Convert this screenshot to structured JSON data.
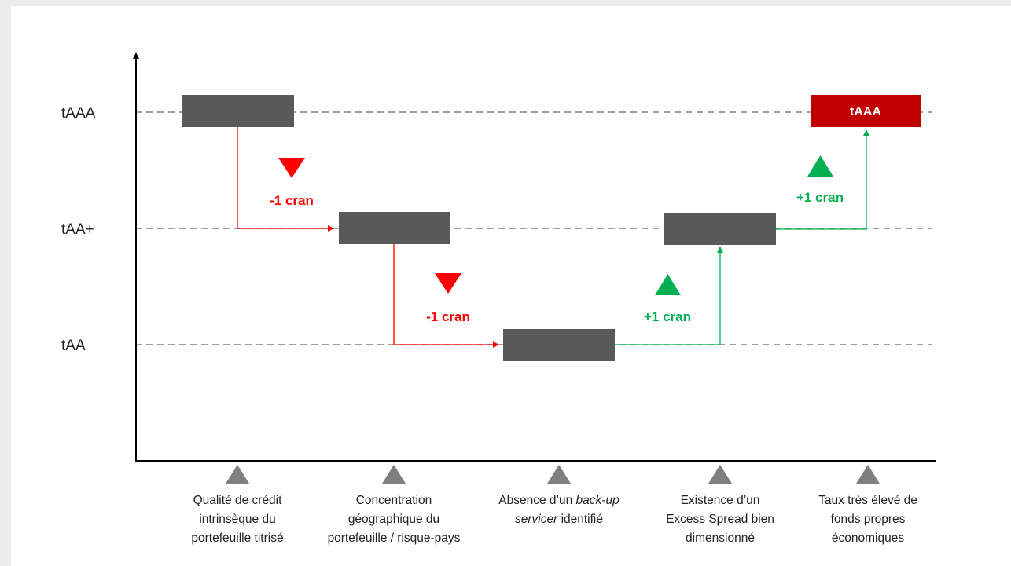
{
  "levels": [
    {
      "label": "tAAA"
    },
    {
      "label": "tAA+"
    },
    {
      "label": "tAA"
    }
  ],
  "steps": [
    {
      "factor_lines": [
        "Qualité de crédit",
        "intrinsèque du",
        "portefeuille titrisé"
      ],
      "level": "tAAA"
    },
    {
      "factor_lines": [
        "Concentration",
        "géographique du",
        "portefeuille / risque-pays"
      ],
      "level": "tAA+"
    },
    {
      "factor_lines": [
        "Absence d’un ",
        "back-up",
        "servicer",
        " identifié"
      ],
      "level": "tAA"
    },
    {
      "factor_lines": [
        "Existence d’un",
        "Excess Spread bien",
        "dimensionné"
      ],
      "level": "tAA+"
    },
    {
      "factor_lines": [
        "Taux très élevé de",
        "fonds propres",
        "économiques"
      ],
      "level": "tAAA",
      "box_label": "tAAA"
    }
  ],
  "adjustments": [
    {
      "label": "-1 cran",
      "direction": "down"
    },
    {
      "label": "-1 cran",
      "direction": "down"
    },
    {
      "label": "+1 cran",
      "direction": "up"
    },
    {
      "label": "+1 cran",
      "direction": "up"
    }
  ],
  "colors": {
    "box": "#595959",
    "final_box": "#c00000",
    "down": "#ff0000",
    "up": "#00b050",
    "axis": "#000000",
    "gridline": "#7f7f7f",
    "marker": "#7f7f7f"
  }
}
